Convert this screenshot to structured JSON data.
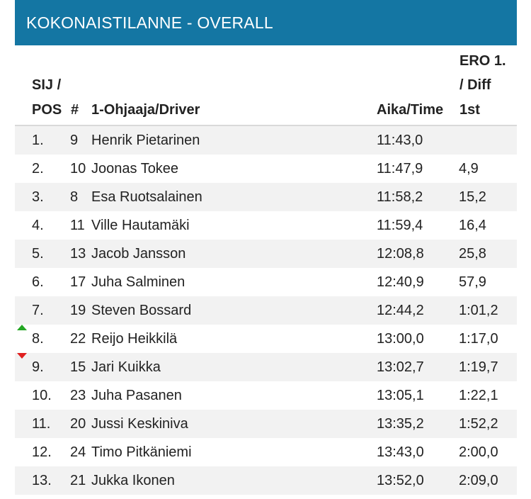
{
  "title": "KOKONAISTILANNE - OVERALL",
  "headers": {
    "pos_line1": "SIJ /",
    "pos_line2": "POS",
    "number": "#",
    "driver": "1-Ohjaaja/Driver",
    "time": "Aika/Time",
    "diff_line1": "ERO 1.",
    "diff_line2": "/ Diff",
    "diff_line3": "1st"
  },
  "rows": [
    {
      "pos": "1.",
      "num": "9",
      "driver": "Henrik Pietarinen",
      "time": "11:43,0",
      "diff": "",
      "trend": ""
    },
    {
      "pos": "2.",
      "num": "10",
      "driver": "Joonas Tokee",
      "time": "11:47,9",
      "diff": "4,9",
      "trend": ""
    },
    {
      "pos": "3.",
      "num": "8",
      "driver": "Esa Ruotsalainen",
      "time": "11:58,2",
      "diff": "15,2",
      "trend": ""
    },
    {
      "pos": "4.",
      "num": "11",
      "driver": "Ville Hautamäki",
      "time": "11:59,4",
      "diff": "16,4",
      "trend": ""
    },
    {
      "pos": "5.",
      "num": "13",
      "driver": "Jacob Jansson",
      "time": "12:08,8",
      "diff": "25,8",
      "trend": ""
    },
    {
      "pos": "6.",
      "num": "17",
      "driver": "Juha Salminen",
      "time": "12:40,9",
      "diff": "57,9",
      "trend": ""
    },
    {
      "pos": "7.",
      "num": "19",
      "driver": "Steven Bossard",
      "time": "12:44,2",
      "diff": "1:01,2",
      "trend": ""
    },
    {
      "pos": "8.",
      "num": "22",
      "driver": "Reijo Heikkilä",
      "time": "13:00,0",
      "diff": "1:17,0",
      "trend": "up"
    },
    {
      "pos": "9.",
      "num": "15",
      "driver": "Jari Kuikka",
      "time": "13:02,7",
      "diff": "1:19,7",
      "trend": "down"
    },
    {
      "pos": "10.",
      "num": "23",
      "driver": "Juha Pasanen",
      "time": "13:05,1",
      "diff": "1:22,1",
      "trend": ""
    },
    {
      "pos": "11.",
      "num": "20",
      "driver": "Jussi Keskiniva",
      "time": "13:35,2",
      "diff": "1:52,2",
      "trend": ""
    },
    {
      "pos": "12.",
      "num": "24",
      "driver": "Timo Pitkäniemi",
      "time": "13:43,0",
      "diff": "2:00,0",
      "trend": ""
    },
    {
      "pos": "13.",
      "num": "21",
      "driver": "Jukka Ikonen",
      "time": "13:52,0",
      "diff": "2:09,0",
      "trend": ""
    }
  ],
  "colors": {
    "title_bg": "#1476a3",
    "row_alt_bg": "#f2f2f2",
    "trend_up": "#23a623",
    "trend_down": "#e02020"
  }
}
